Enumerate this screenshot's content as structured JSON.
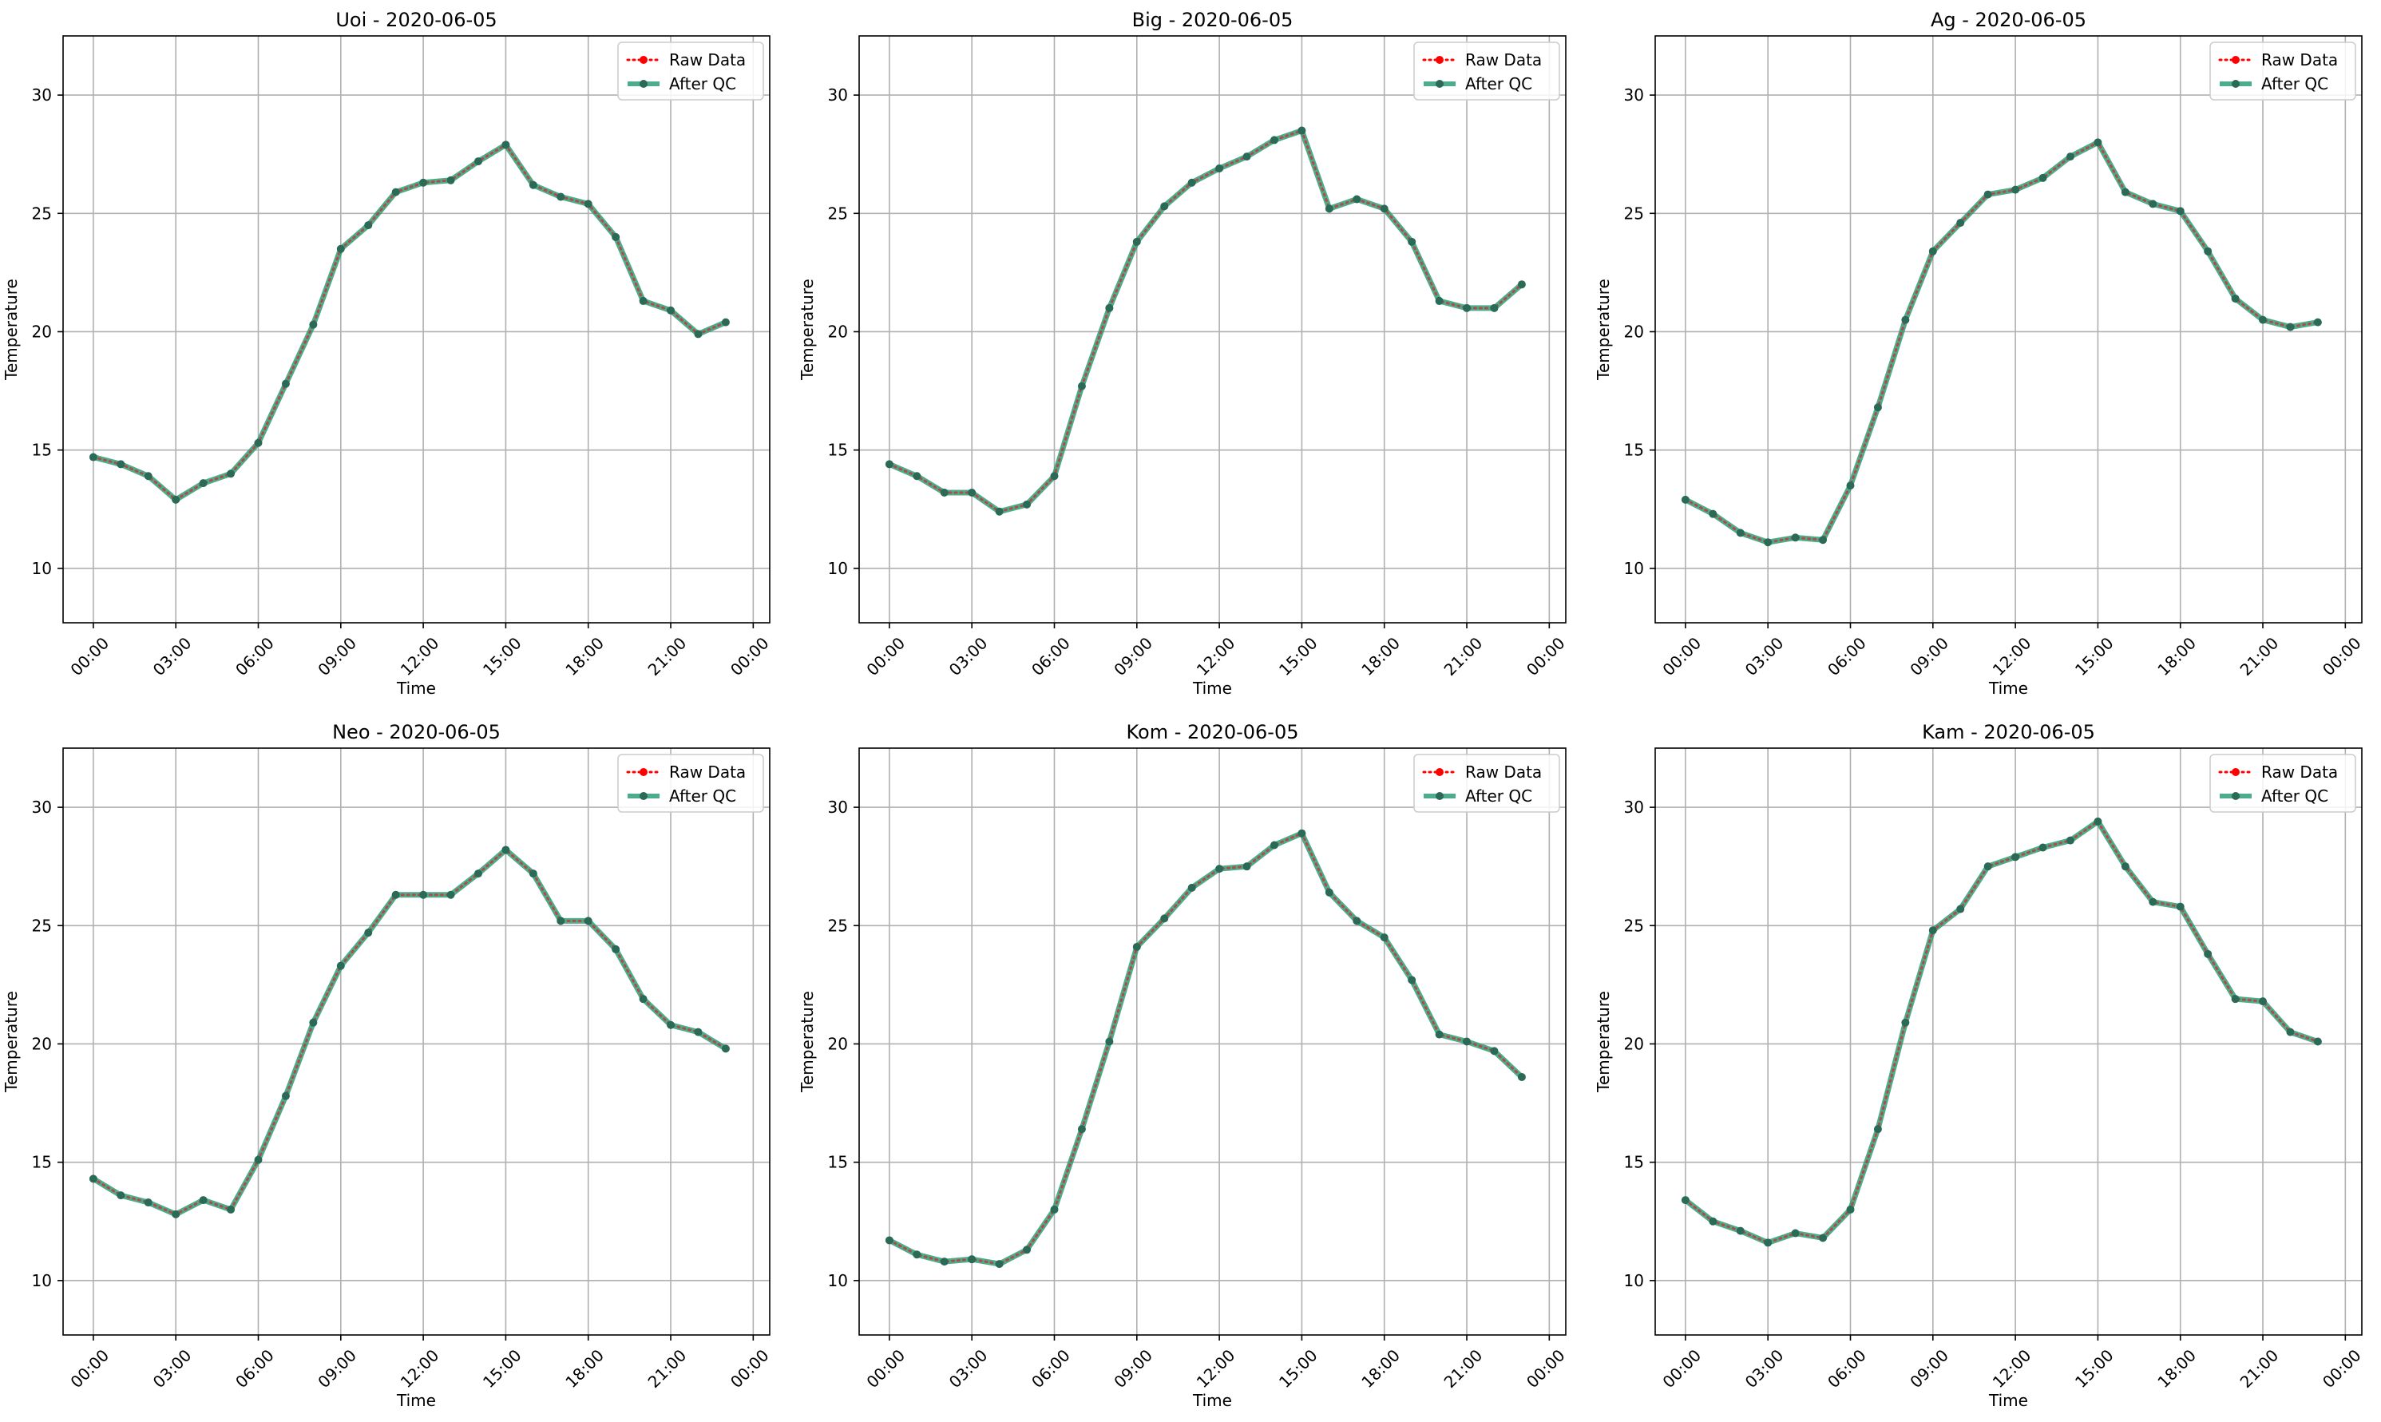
{
  "chart_data": [
    {
      "type": "line",
      "title": "Uoi - 2020-06-05",
      "xlabel": "Time",
      "ylabel": "Temperature",
      "x_hours": [
        0,
        1,
        2,
        3,
        4,
        5,
        6,
        7,
        8,
        9,
        10,
        11,
        12,
        13,
        14,
        15,
        16,
        17,
        18,
        19,
        20,
        21,
        22,
        23
      ],
      "xticks": [
        "00:00",
        "03:00",
        "06:00",
        "09:00",
        "12:00",
        "15:00",
        "18:00",
        "21:00",
        "00:00"
      ],
      "yticks": [
        10,
        15,
        20,
        25,
        30
      ],
      "ylim": [
        7.7,
        32.5
      ],
      "grid": true,
      "legend_position": "top-right",
      "series": [
        {
          "name": "Raw Data",
          "color": "#ff0000",
          "values": [
            14.7,
            14.4,
            13.9,
            12.9,
            13.6,
            14.0,
            15.3,
            17.8,
            20.3,
            23.5,
            24.5,
            25.9,
            26.3,
            26.4,
            27.2,
            27.9,
            26.2,
            25.7,
            25.4,
            24.0,
            21.3,
            20.9,
            19.9,
            20.4
          ]
        },
        {
          "name": "After QC",
          "color": "#2e9e7a",
          "values": [
            14.7,
            14.4,
            13.9,
            12.9,
            13.6,
            14.0,
            15.3,
            17.8,
            20.3,
            23.5,
            24.5,
            25.9,
            26.3,
            26.4,
            27.2,
            27.9,
            26.2,
            25.7,
            25.4,
            24.0,
            21.3,
            20.9,
            19.9,
            20.4
          ]
        }
      ]
    },
    {
      "type": "line",
      "title": "Big - 2020-06-05",
      "xlabel": "Time",
      "ylabel": "Temperature",
      "x_hours": [
        0,
        1,
        2,
        3,
        4,
        5,
        6,
        7,
        8,
        9,
        10,
        11,
        12,
        13,
        14,
        15,
        16,
        17,
        18,
        19,
        20,
        21,
        22,
        23
      ],
      "xticks": [
        "00:00",
        "03:00",
        "06:00",
        "09:00",
        "12:00",
        "15:00",
        "18:00",
        "21:00",
        "00:00"
      ],
      "yticks": [
        10,
        15,
        20,
        25,
        30
      ],
      "ylim": [
        7.7,
        32.5
      ],
      "grid": true,
      "legend_position": "top-right",
      "series": [
        {
          "name": "Raw Data",
          "color": "#ff0000",
          "values": [
            14.4,
            13.9,
            13.2,
            13.2,
            12.4,
            12.7,
            13.9,
            17.7,
            21.0,
            23.8,
            25.3,
            26.3,
            26.9,
            27.4,
            28.1,
            28.5,
            25.2,
            25.6,
            25.2,
            23.8,
            21.3,
            21.0,
            21.0,
            22.0
          ]
        },
        {
          "name": "After QC",
          "color": "#2e9e7a",
          "values": [
            14.4,
            13.9,
            13.2,
            13.2,
            12.4,
            12.7,
            13.9,
            17.7,
            21.0,
            23.8,
            25.3,
            26.3,
            26.9,
            27.4,
            28.1,
            28.5,
            25.2,
            25.6,
            25.2,
            23.8,
            21.3,
            21.0,
            21.0,
            22.0
          ]
        }
      ]
    },
    {
      "type": "line",
      "title": "Ag - 2020-06-05",
      "xlabel": "Time",
      "ylabel": "Temperature",
      "x_hours": [
        0,
        1,
        2,
        3,
        4,
        5,
        6,
        7,
        8,
        9,
        10,
        11,
        12,
        13,
        14,
        15,
        16,
        17,
        18,
        19,
        20,
        21,
        22,
        23
      ],
      "xticks": [
        "00:00",
        "03:00",
        "06:00",
        "09:00",
        "12:00",
        "15:00",
        "18:00",
        "21:00",
        "00:00"
      ],
      "yticks": [
        10,
        15,
        20,
        25,
        30
      ],
      "ylim": [
        7.7,
        32.5
      ],
      "grid": true,
      "legend_position": "top-right",
      "series": [
        {
          "name": "Raw Data",
          "color": "#ff0000",
          "values": [
            12.9,
            12.3,
            11.5,
            11.1,
            11.3,
            11.2,
            13.5,
            16.8,
            20.5,
            23.4,
            24.6,
            25.8,
            26.0,
            26.5,
            27.4,
            28.0,
            25.9,
            25.4,
            25.1,
            23.4,
            21.4,
            20.5,
            20.2,
            20.4
          ]
        },
        {
          "name": "After QC",
          "color": "#2e9e7a",
          "values": [
            12.9,
            12.3,
            11.5,
            11.1,
            11.3,
            11.2,
            13.5,
            16.8,
            20.5,
            23.4,
            24.6,
            25.8,
            26.0,
            26.5,
            27.4,
            28.0,
            25.9,
            25.4,
            25.1,
            23.4,
            21.4,
            20.5,
            20.2,
            20.4
          ]
        }
      ]
    },
    {
      "type": "line",
      "title": "Neo - 2020-06-05",
      "xlabel": "Time",
      "ylabel": "Temperature",
      "x_hours": [
        0,
        1,
        2,
        3,
        4,
        5,
        6,
        7,
        8,
        9,
        10,
        11,
        12,
        13,
        14,
        15,
        16,
        17,
        18,
        19,
        20,
        21,
        22,
        23
      ],
      "xticks": [
        "00:00",
        "03:00",
        "06:00",
        "09:00",
        "12:00",
        "15:00",
        "18:00",
        "21:00",
        "00:00"
      ],
      "yticks": [
        10,
        15,
        20,
        25,
        30
      ],
      "ylim": [
        7.7,
        32.5
      ],
      "grid": true,
      "legend_position": "top-right",
      "series": [
        {
          "name": "Raw Data",
          "color": "#ff0000",
          "values": [
            14.3,
            13.6,
            13.3,
            12.8,
            13.4,
            13.0,
            15.1,
            17.8,
            20.9,
            23.3,
            24.7,
            26.3,
            26.3,
            26.3,
            27.2,
            28.2,
            27.2,
            25.2,
            25.2,
            24.0,
            21.9,
            20.8,
            20.5,
            19.8
          ]
        },
        {
          "name": "After QC",
          "color": "#2e9e7a",
          "values": [
            14.3,
            13.6,
            13.3,
            12.8,
            13.4,
            13.0,
            15.1,
            17.8,
            20.9,
            23.3,
            24.7,
            26.3,
            26.3,
            26.3,
            27.2,
            28.2,
            27.2,
            25.2,
            25.2,
            24.0,
            21.9,
            20.8,
            20.5,
            19.8
          ]
        }
      ]
    },
    {
      "type": "line",
      "title": "Kom - 2020-06-05",
      "xlabel": "Time",
      "ylabel": "Temperature",
      "x_hours": [
        0,
        1,
        2,
        3,
        4,
        5,
        6,
        7,
        8,
        9,
        10,
        11,
        12,
        13,
        14,
        15,
        16,
        17,
        18,
        19,
        20,
        21,
        22,
        23
      ],
      "xticks": [
        "00:00",
        "03:00",
        "06:00",
        "09:00",
        "12:00",
        "15:00",
        "18:00",
        "21:00",
        "00:00"
      ],
      "yticks": [
        10,
        15,
        20,
        25,
        30
      ],
      "ylim": [
        7.7,
        32.5
      ],
      "grid": true,
      "legend_position": "top-right",
      "series": [
        {
          "name": "Raw Data",
          "color": "#ff0000",
          "values": [
            11.7,
            11.1,
            10.8,
            10.9,
            10.7,
            11.3,
            13.0,
            16.4,
            20.1,
            24.1,
            25.3,
            26.6,
            27.4,
            27.5,
            28.4,
            28.9,
            26.4,
            25.2,
            24.5,
            22.7,
            20.4,
            20.1,
            19.7,
            18.6
          ]
        },
        {
          "name": "After QC",
          "color": "#2e9e7a",
          "values": [
            11.7,
            11.1,
            10.8,
            10.9,
            10.7,
            11.3,
            13.0,
            16.4,
            20.1,
            24.1,
            25.3,
            26.6,
            27.4,
            27.5,
            28.4,
            28.9,
            26.4,
            25.2,
            24.5,
            22.7,
            20.4,
            20.1,
            19.7,
            18.6
          ]
        }
      ]
    },
    {
      "type": "line",
      "title": "Kam - 2020-06-05",
      "xlabel": "Time",
      "ylabel": "Temperature",
      "x_hours": [
        0,
        1,
        2,
        3,
        4,
        5,
        6,
        7,
        8,
        9,
        10,
        11,
        12,
        13,
        14,
        15,
        16,
        17,
        18,
        19,
        20,
        21,
        22,
        23
      ],
      "xticks": [
        "00:00",
        "03:00",
        "06:00",
        "09:00",
        "12:00",
        "15:00",
        "18:00",
        "21:00",
        "00:00"
      ],
      "yticks": [
        10,
        15,
        20,
        25,
        30
      ],
      "ylim": [
        7.7,
        32.5
      ],
      "grid": true,
      "legend_position": "top-right",
      "series": [
        {
          "name": "Raw Data",
          "color": "#ff0000",
          "values": [
            13.4,
            12.5,
            12.1,
            11.6,
            12.0,
            11.8,
            13.0,
            16.4,
            20.9,
            24.8,
            25.7,
            27.5,
            27.9,
            28.3,
            28.6,
            29.4,
            27.5,
            26.0,
            25.8,
            23.8,
            21.9,
            21.8,
            20.5,
            20.1
          ]
        },
        {
          "name": "After QC",
          "color": "#2e9e7a",
          "values": [
            13.4,
            12.5,
            12.1,
            11.6,
            12.0,
            11.8,
            13.0,
            16.4,
            20.9,
            24.8,
            25.7,
            27.5,
            27.9,
            28.3,
            28.6,
            29.4,
            27.5,
            26.0,
            25.8,
            23.8,
            21.9,
            21.8,
            20.5,
            20.1
          ]
        }
      ]
    }
  ]
}
